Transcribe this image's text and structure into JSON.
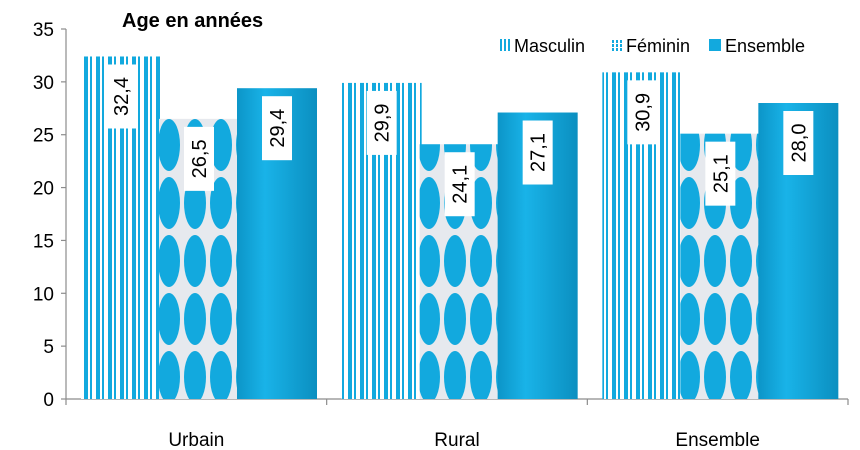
{
  "chart_data": {
    "type": "bar",
    "title": "Age en années",
    "categories": [
      "Urbain",
      "Rural",
      "Ensemble"
    ],
    "series": [
      {
        "name": "Masculin",
        "values": [
          32.4,
          29.9,
          30.9
        ],
        "labels": [
          "32,4",
          "29,9",
          "30,9"
        ],
        "pattern": "vertical-stripes"
      },
      {
        "name": "Féminin",
        "values": [
          26.5,
          24.1,
          25.1
        ],
        "labels": [
          "26,5",
          "24,1",
          "25,1"
        ],
        "pattern": "ovals"
      },
      {
        "name": "Ensemble",
        "values": [
          29.4,
          27.1,
          28.0
        ],
        "labels": [
          "29,4",
          "27,1",
          "28,0"
        ],
        "pattern": "solid"
      }
    ],
    "ylim": [
      0,
      35
    ],
    "yticks": [
      "0",
      "5",
      "10",
      "15",
      "20",
      "25",
      "30",
      "35"
    ],
    "legend": "top-right",
    "colors": {
      "bar": "#12a9de",
      "bar_light": "#ffffff",
      "bar_dark": "#0b8fc0"
    }
  }
}
